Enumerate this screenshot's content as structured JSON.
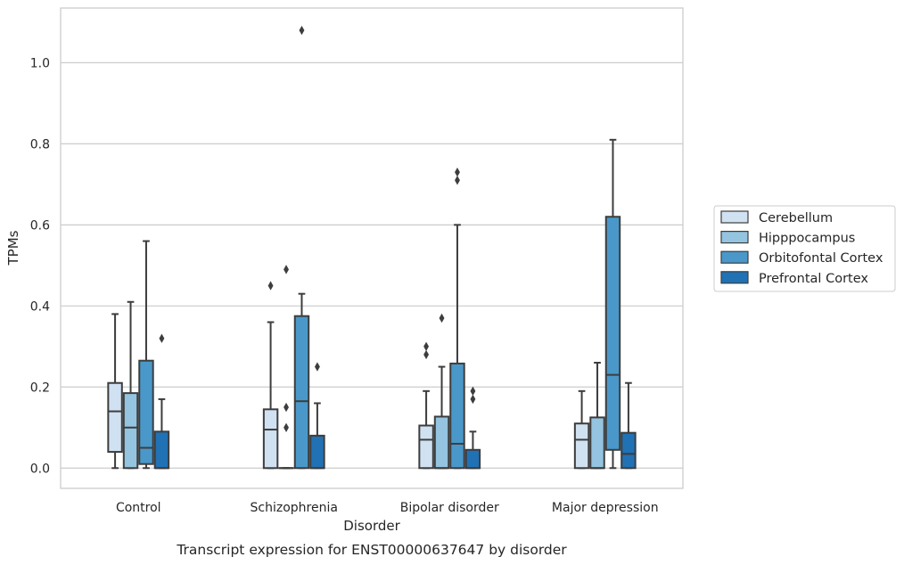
{
  "chart_data": {
    "type": "box",
    "caption": "Transcript expression for ENST00000637647 by disorder",
    "xlabel": "Disorder",
    "ylabel": "TPMs",
    "ylim": [
      -0.05,
      1.135
    ],
    "yticks": [
      0.0,
      0.2,
      0.4,
      0.6,
      0.8,
      1.0
    ],
    "ytick_labels": [
      "0.0",
      "0.2",
      "0.4",
      "0.6",
      "0.8",
      "1.0"
    ],
    "grid": "horizontal",
    "legend_position": "right",
    "categories": [
      "Control",
      "Schizophrenia",
      "Bipolar disorder",
      "Major depression"
    ],
    "series": [
      {
        "name": "Cerebellum",
        "color": "#d0e1f2",
        "boxes": [
          {
            "whislo": 0.0,
            "q1": 0.04,
            "med": 0.14,
            "q3": 0.21,
            "whishi": 0.38,
            "fliers": []
          },
          {
            "whislo": 0.0,
            "q1": 0.0,
            "med": 0.095,
            "q3": 0.145,
            "whishi": 0.36,
            "fliers": [
              0.45
            ]
          },
          {
            "whislo": 0.0,
            "q1": 0.0,
            "med": 0.07,
            "q3": 0.105,
            "whishi": 0.19,
            "fliers": [
              0.28,
              0.3
            ]
          },
          {
            "whislo": 0.0,
            "q1": 0.0,
            "med": 0.07,
            "q3": 0.11,
            "whishi": 0.19,
            "fliers": []
          }
        ]
      },
      {
        "name": "Hipppocampus",
        "color": "#94c4df",
        "boxes": [
          {
            "whislo": 0.0,
            "q1": 0.0,
            "med": 0.1,
            "q3": 0.185,
            "whishi": 0.41,
            "fliers": []
          },
          {
            "whislo": 0.0,
            "q1": 0.0,
            "med": 0.0,
            "q3": 0.0,
            "whishi": 0.0,
            "fliers": [
              0.1,
              0.15,
              0.49
            ]
          },
          {
            "whislo": 0.0,
            "q1": 0.0,
            "med": 0.0,
            "q3": 0.127,
            "whishi": 0.25,
            "fliers": [
              0.37
            ]
          },
          {
            "whislo": 0.0,
            "q1": 0.0,
            "med": 0.0,
            "q3": 0.125,
            "whishi": 0.26,
            "fliers": []
          }
        ]
      },
      {
        "name": "Orbitofontal Cortex",
        "color": "#4a98c9",
        "boxes": [
          {
            "whislo": 0.0,
            "q1": 0.01,
            "med": 0.05,
            "q3": 0.265,
            "whishi": 0.56,
            "fliers": []
          },
          {
            "whislo": 0.0,
            "q1": 0.0,
            "med": 0.165,
            "q3": 0.375,
            "whishi": 0.43,
            "fliers": [
              1.08
            ]
          },
          {
            "whislo": 0.0,
            "q1": 0.0,
            "med": 0.06,
            "q3": 0.258,
            "whishi": 0.6,
            "fliers": [
              0.71,
              0.73
            ]
          },
          {
            "whislo": 0.0,
            "q1": 0.045,
            "med": 0.23,
            "q3": 0.62,
            "whishi": 0.81,
            "fliers": []
          }
        ]
      },
      {
        "name": "Prefrontal Cortex",
        "color": "#2171b5",
        "boxes": [
          {
            "whislo": 0.0,
            "q1": 0.0,
            "med": 0.0,
            "q3": 0.09,
            "whishi": 0.17,
            "fliers": [
              0.32
            ]
          },
          {
            "whislo": 0.0,
            "q1": 0.0,
            "med": 0.0,
            "q3": 0.08,
            "whishi": 0.16,
            "fliers": [
              0.25
            ]
          },
          {
            "whislo": 0.0,
            "q1": 0.0,
            "med": 0.0,
            "q3": 0.045,
            "whishi": 0.09,
            "fliers": [
              0.17,
              0.19
            ]
          },
          {
            "whislo": 0.0,
            "q1": 0.0,
            "med": 0.035,
            "q3": 0.087,
            "whishi": 0.21,
            "fliers": []
          }
        ]
      }
    ]
  }
}
